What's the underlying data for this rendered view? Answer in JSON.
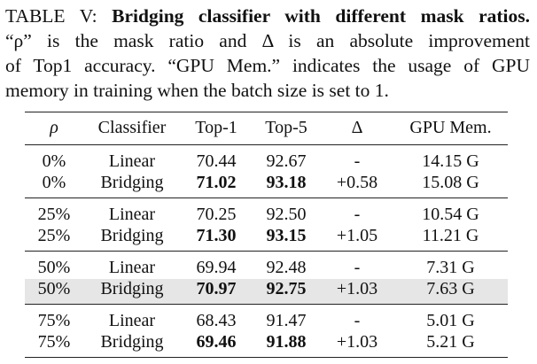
{
  "caption": {
    "label": "TABLE V:",
    "title": "Bridging classifier with different mask ratios.",
    "line2": "“ρ” is the mask ratio and Δ is an absolute improvement",
    "line3": "of Top1 accuracy. “GPU Mem.” indicates the usage of GPU",
    "line4": "memory in training when the batch size is set to 1."
  },
  "table": {
    "headers": {
      "rho": "ρ",
      "classifier": "Classifier",
      "top1": "Top-1",
      "top5": "Top-5",
      "delta": "Δ",
      "gpu": "GPU Mem."
    },
    "groups": [
      {
        "rows": [
          {
            "rho": "0%",
            "classifier": "Linear",
            "top1": "70.44",
            "top5": "92.67",
            "delta": "-",
            "gpu": "14.15 G"
          },
          {
            "rho": "0%",
            "classifier": "Bridging",
            "top1": "71.02",
            "top5": "93.18",
            "delta": "+0.58",
            "gpu": "15.08 G"
          }
        ]
      },
      {
        "rows": [
          {
            "rho": "25%",
            "classifier": "Linear",
            "top1": "70.25",
            "top5": "92.50",
            "delta": "-",
            "gpu": "10.54 G"
          },
          {
            "rho": "25%",
            "classifier": "Bridging",
            "top1": "71.30",
            "top5": "93.15",
            "delta": "+1.05",
            "gpu": "11.21 G"
          }
        ]
      },
      {
        "rows": [
          {
            "rho": "50%",
            "classifier": "Linear",
            "top1": "69.94",
            "top5": "92.48",
            "delta": "-",
            "gpu": "7.31 G"
          },
          {
            "rho": "50%",
            "classifier": "Bridging",
            "top1": "70.97",
            "top5": "92.75",
            "delta": "+1.03",
            "gpu": "7.63 G"
          }
        ]
      },
      {
        "rows": [
          {
            "rho": "75%",
            "classifier": "Linear",
            "top1": "68.43",
            "top5": "91.47",
            "delta": "-",
            "gpu": "5.01 G"
          },
          {
            "rho": "75%",
            "classifier": "Bridging",
            "top1": "69.46",
            "top5": "91.88",
            "delta": "+1.03",
            "gpu": "5.21 G"
          }
        ]
      }
    ],
    "highlight_color": "#e6e6e6"
  }
}
